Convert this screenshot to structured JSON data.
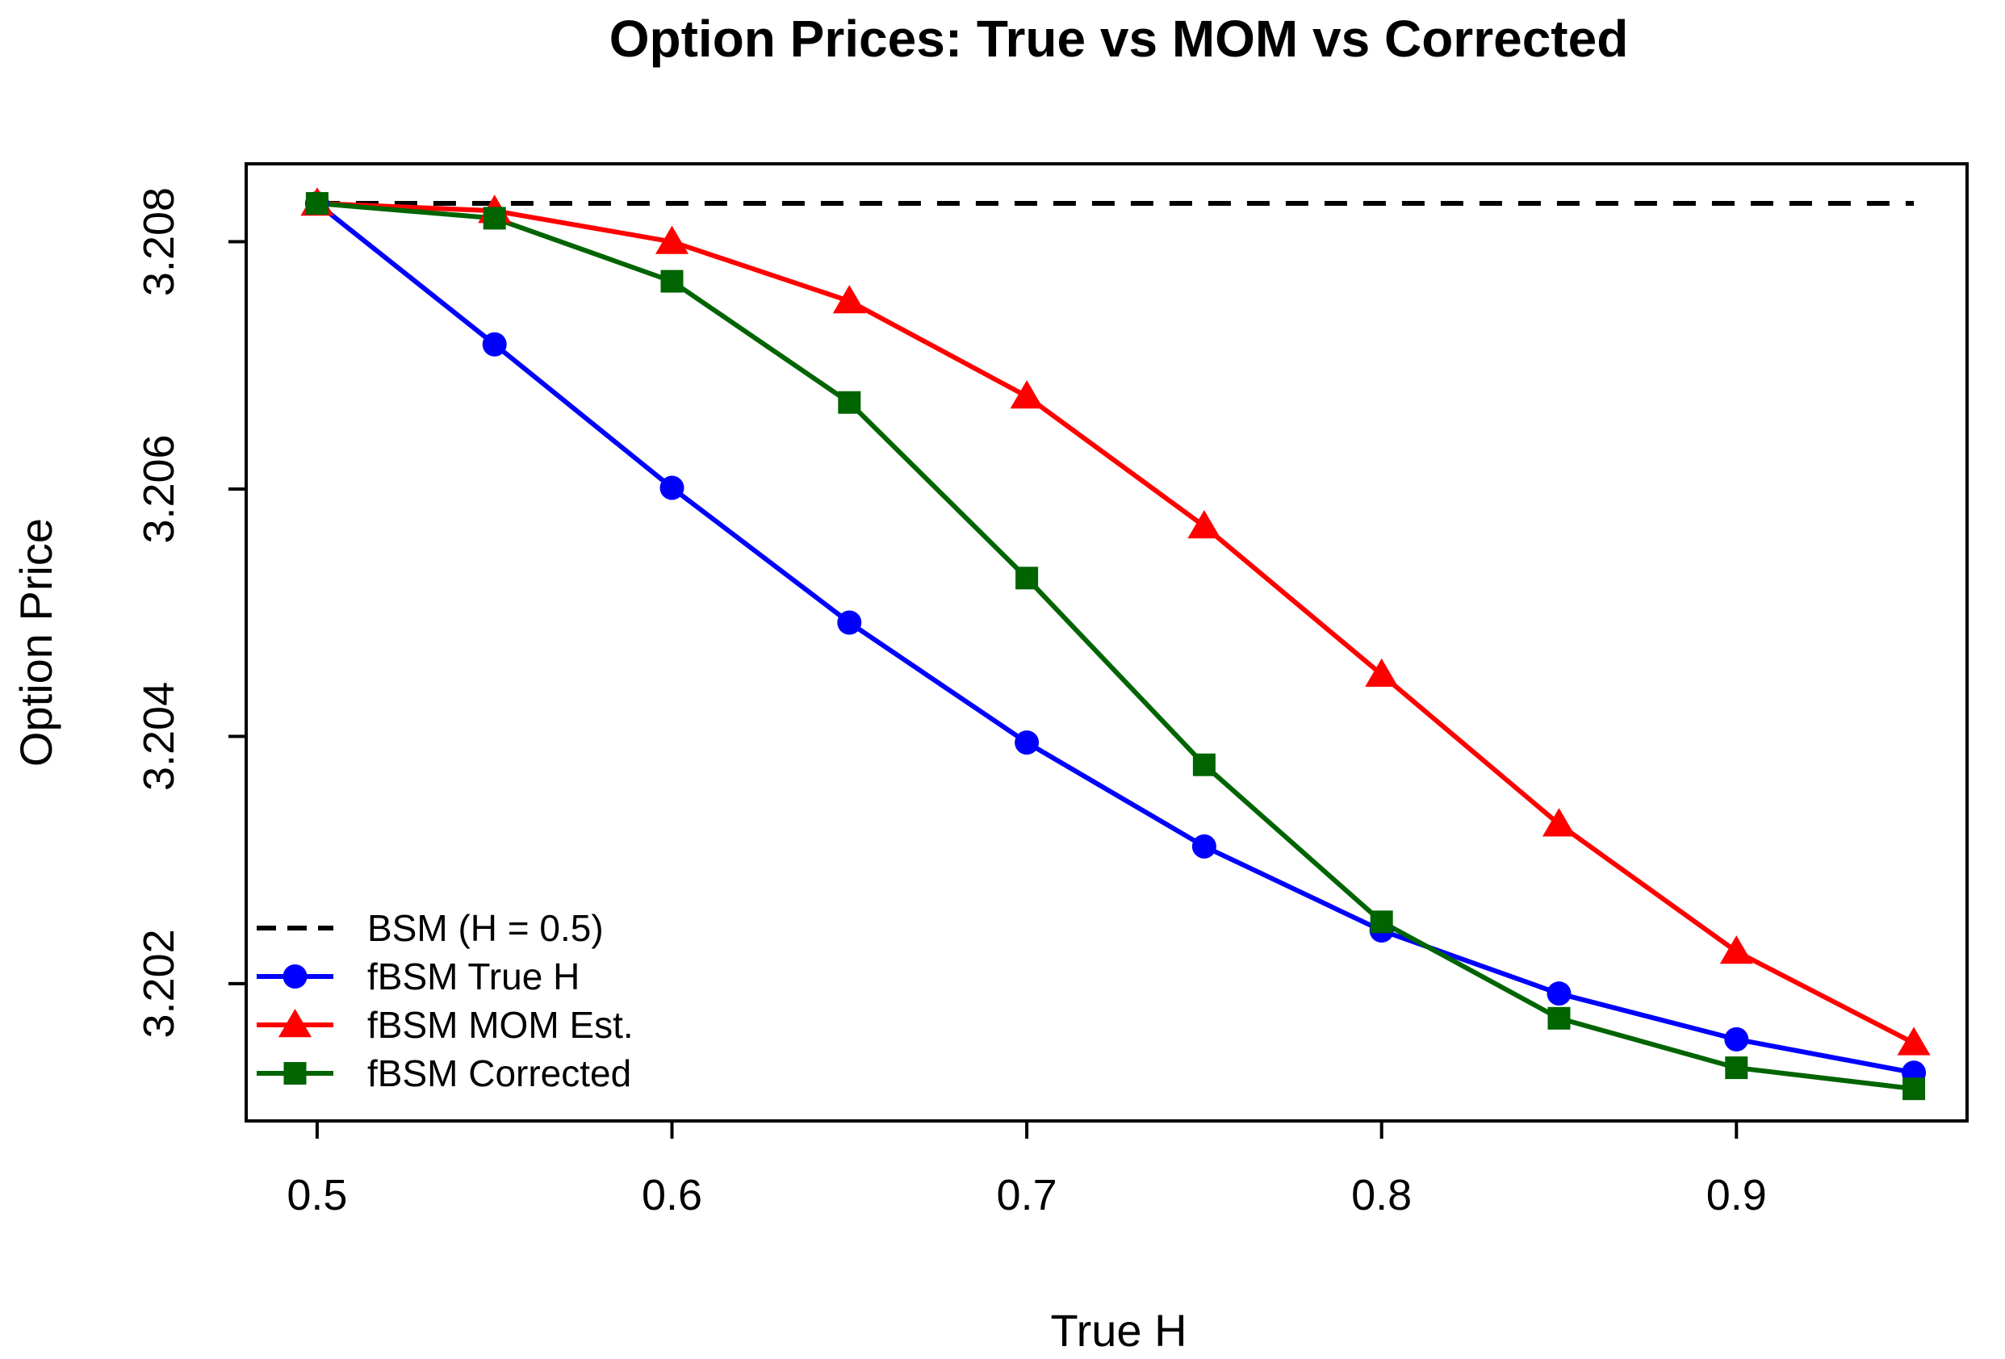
{
  "chart_data": {
    "type": "line",
    "title": "Option Prices: True vs MOM vs Corrected",
    "xlabel": "True H",
    "ylabel": "Option Price",
    "xlim": [
      0.48,
      0.965
    ],
    "ylim": [
      3.20089,
      3.20863
    ],
    "xticks": [
      0.5,
      0.6,
      0.7,
      0.8,
      0.9
    ],
    "xtick_labels": [
      "0.5",
      "0.6",
      "0.7",
      "0.8",
      "0.9"
    ],
    "yticks": [
      3.202,
      3.204,
      3.206,
      3.208
    ],
    "ytick_labels": [
      "3.202",
      "3.204",
      "3.206",
      "3.208"
    ],
    "grid": false,
    "legend_position": "bottom-left",
    "x": [
      0.5,
      0.55,
      0.6,
      0.65,
      0.7,
      0.75,
      0.8,
      0.85,
      0.9,
      0.95
    ],
    "series": [
      {
        "name": "BSM (H = 0.5)",
        "color": "#000000",
        "style": "dashed",
        "marker": "none",
        "x": [
          0.5,
          0.95
        ],
        "values": [
          3.20831,
          3.20831
        ]
      },
      {
        "name": "fBSM True H",
        "color": "#0000ff",
        "style": "solid",
        "marker": "circle",
        "values": [
          3.20831,
          3.20717,
          3.20601,
          3.20492,
          3.20395,
          3.20311,
          3.20243,
          3.20192,
          3.20155,
          3.20128
        ]
      },
      {
        "name": "fBSM MOM Est.",
        "color": "#ff0000",
        "style": "solid",
        "marker": "triangle",
        "values": [
          3.20831,
          3.20825,
          3.208,
          3.20752,
          3.20675,
          3.2057,
          3.2045,
          3.20329,
          3.20226,
          3.20152
        ]
      },
      {
        "name": "fBSM Corrected",
        "color": "#006400",
        "style": "solid",
        "marker": "square",
        "values": [
          3.20831,
          3.20819,
          3.20768,
          3.2067,
          3.20528,
          3.20377,
          3.2025,
          3.20172,
          3.20132,
          3.20115
        ]
      }
    ]
  }
}
